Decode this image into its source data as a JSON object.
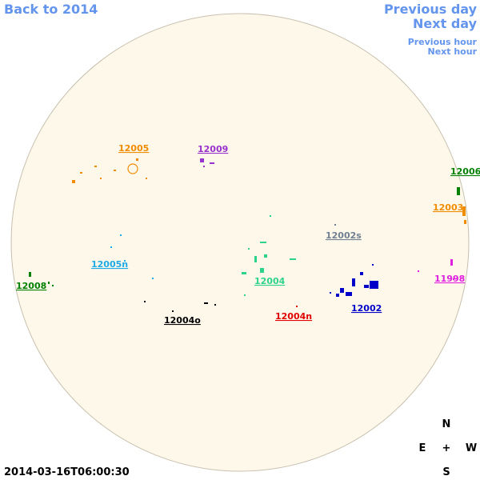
{
  "nav": {
    "back_year": "Back to 2014",
    "previous_day": "Previous day",
    "next_day": "Next day",
    "previous_hour": "Previous hour",
    "next_hour": "Next hour"
  },
  "regions": [
    {
      "label": "12005",
      "color": "#f08c00"
    },
    {
      "label": "12009",
      "color": "#9932cc"
    },
    {
      "label": "12006",
      "color": "#008000"
    },
    {
      "label": "12003",
      "color": "#f08c00"
    },
    {
      "label": "12002s",
      "color": "#708090"
    },
    {
      "label": "12005n",
      "color": "#1eaae6"
    },
    {
      "label": "12008",
      "color": "#008000"
    },
    {
      "label": "12004",
      "color": "#2ed38a"
    },
    {
      "label": "11998",
      "color": "#e020e0"
    },
    {
      "label": "12002",
      "color": "#0000c8"
    },
    {
      "label": "12004n",
      "color": "#e00000"
    },
    {
      "label": "12004o",
      "color": "#000000"
    }
  ],
  "compass": {
    "north": "N",
    "east": "E",
    "center": "+",
    "west": "W",
    "south": "S"
  },
  "timestamp": "2014-03-16T06:00:30"
}
